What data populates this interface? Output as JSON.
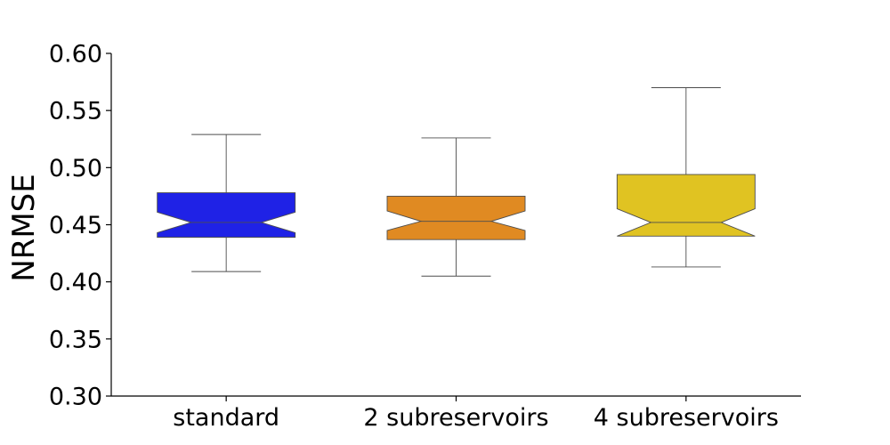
{
  "chart_data": {
    "type": "box",
    "title": "",
    "xlabel": "",
    "ylabel": "NRMSE",
    "ylim": [
      0.3,
      0.6
    ],
    "yticks": [
      "0.30",
      "0.35",
      "0.40",
      "0.45",
      "0.50",
      "0.55",
      "0.60"
    ],
    "grid": false,
    "notched": true,
    "categories": [
      "standard",
      "2 subreservoirs",
      "4 subreservoirs"
    ],
    "boxes": [
      {
        "category": "standard",
        "whisker_low": 0.409,
        "q1": 0.439,
        "median": 0.452,
        "q3": 0.478,
        "whisker_high": 0.529,
        "notch_low": 0.443,
        "notch_high": 0.461,
        "color": "#1f22e6"
      },
      {
        "category": "2 subreservoirs",
        "whisker_low": 0.405,
        "q1": 0.437,
        "median": 0.453,
        "q3": 0.475,
        "whisker_high": 0.526,
        "notch_low": 0.445,
        "notch_high": 0.462,
        "color": "#e08a22"
      },
      {
        "category": "4 subreservoirs",
        "whisker_low": 0.413,
        "q1": 0.44,
        "median": 0.452,
        "q3": 0.494,
        "whisker_high": 0.57,
        "notch_low": 0.44,
        "notch_high": 0.464,
        "color": "#e0c322"
      }
    ]
  }
}
